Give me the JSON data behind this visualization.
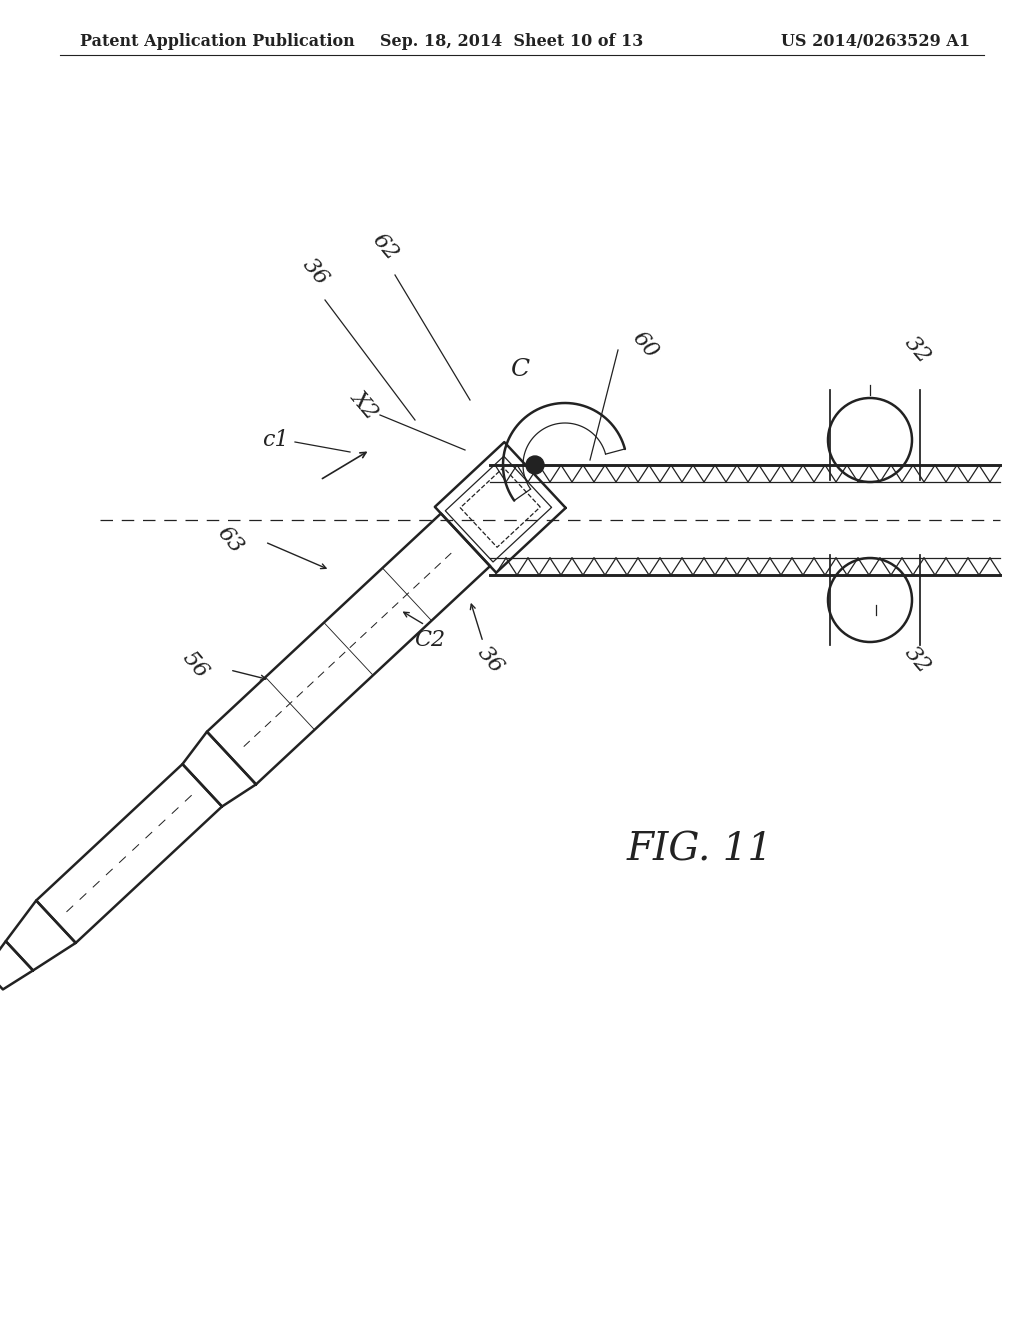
{
  "bg_color": "#ffffff",
  "header_left": "Patent Application Publication",
  "header_center": "Sep. 18, 2014  Sheet 10 of 13",
  "header_right": "US 2014/0263529 A1",
  "header_fontsize": 11.5,
  "line_color": "#222222",
  "lw_main": 1.8,
  "lw_thin": 0.9,
  "lw_thick": 2.5,
  "fig_label": "FIG. 11",
  "fig_label_fontsize": 28
}
